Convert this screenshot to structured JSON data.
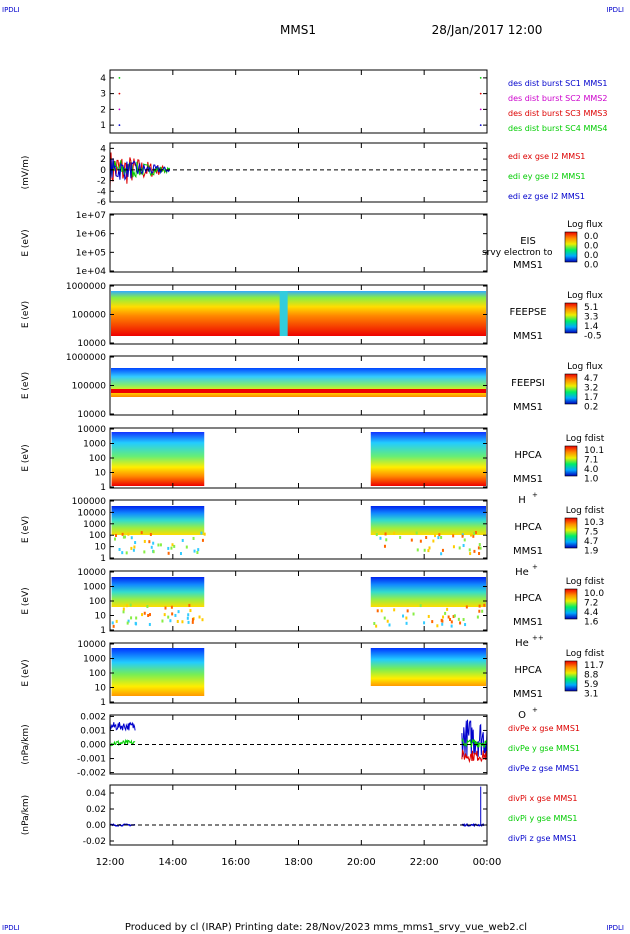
{
  "corner_tag": "IPDLI",
  "header": {
    "spacecraft": "MMS1",
    "datetime": "28/Jan/2017 12:00"
  },
  "footer": "Produced by cl (IRAP)   Printing date: 28/Nov/2023   mms_mms1_srvy_vue_web2.cl",
  "colors": {
    "black": "#000000",
    "blue": "#0000cc",
    "magenta": "#cc00cc",
    "red": "#dd0000",
    "green": "#00cc00",
    "darkblue": "#000099"
  },
  "chart_data": {
    "type": "multi-panel",
    "x_ticks": [
      "12:00",
      "14:00",
      "16:00",
      "18:00",
      "20:00",
      "22:00",
      "00:00"
    ],
    "x_range_hours": [
      12,
      24
    ],
    "panels": [
      {
        "id": "burst",
        "type": "scatter",
        "ylim": [
          0.5,
          4.5
        ],
        "yticks": [
          "1",
          "2",
          "3",
          "4"
        ],
        "ytick_values": [
          1,
          2,
          3,
          4
        ],
        "points": [
          {
            "t": 12.3,
            "v": 1
          },
          {
            "t": 12.3,
            "v": 2
          },
          {
            "t": 12.3,
            "v": 3
          },
          {
            "t": 12.3,
            "v": 4
          },
          {
            "t": 23.8,
            "v": 1
          },
          {
            "t": 23.8,
            "v": 2
          },
          {
            "t": 23.8,
            "v": 3
          },
          {
            "t": 23.8,
            "v": 4
          }
        ],
        "legend": [
          {
            "text": "des dist burst SC1 MMS1",
            "color": "#0000cc"
          },
          {
            "text": "des dist burst SC2 MMS2",
            "color": "#cc00cc"
          },
          {
            "text": "des dist burst SC3 MMS3",
            "color": "#dd0000"
          },
          {
            "text": "des dist burst SC4 MMS4",
            "color": "#00cc00"
          }
        ]
      },
      {
        "id": "edi",
        "type": "line",
        "ylabel": "(mV/m)",
        "ylim": [
          -6,
          5
        ],
        "yticks": [
          "4",
          "2",
          "0",
          "-2",
          "-4",
          "-6"
        ],
        "ytick_values": [
          4,
          2,
          0,
          -2,
          -4,
          -6
        ],
        "data_extent_hours": [
          12.0,
          13.9
        ],
        "legend": [
          {
            "text": "edi ex gse l2 MMS1",
            "color": "#dd0000"
          },
          {
            "text": "edi ey gse l2 MMS1",
            "color": "#00cc00"
          },
          {
            "text": "edi ez gse l2 MMS1",
            "color": "#0000cc"
          }
        ]
      },
      {
        "id": "eis",
        "type": "heatmap",
        "ylabel": "E (eV)",
        "yticks": [
          "1e+07",
          "1e+06",
          "1e+05",
          "1e+04"
        ],
        "instrument": [
          "EIS",
          "MMS1"
        ],
        "overlay_text": "srvy electron to",
        "colorbar": {
          "title": "Log flux",
          "values": [
            "0.0",
            "0.0",
            "0.0",
            "0.0"
          ]
        }
      },
      {
        "id": "feepse",
        "type": "heatmap",
        "ylabel": "E (eV)",
        "yticks": [
          "1000000",
          "100000",
          "10000"
        ],
        "instrument": [
          "FEEPSE",
          "MMS1"
        ],
        "colorbar": {
          "title": "Log flux",
          "values": [
            "5.1",
            "3.3",
            "1.4",
            "-0.5"
          ]
        }
      },
      {
        "id": "feepsi",
        "type": "heatmap",
        "ylabel": "E (eV)",
        "yticks": [
          "1000000",
          "100000",
          "10000"
        ],
        "instrument": [
          "FEEPSI",
          "MMS1"
        ],
        "colorbar": {
          "title": "Log flux",
          "values": [
            "4.7",
            "3.2",
            "1.7",
            "0.2"
          ]
        }
      },
      {
        "id": "hpca_h",
        "type": "heatmap",
        "ylabel": "E (eV)",
        "yticks": [
          "10000",
          "1000",
          "100",
          "10",
          "1"
        ],
        "instrument": [
          "HPCA",
          "MMS1"
        ],
        "species": "H",
        "charge": "+",
        "colorbar": {
          "title": "Log fdist",
          "values": [
            "10.1",
            "7.1",
            "4.0",
            "1.0"
          ]
        }
      },
      {
        "id": "hpca_he",
        "type": "heatmap",
        "ylabel": "E (eV)",
        "yticks": [
          "100000",
          "10000",
          "1000",
          "100",
          "10",
          "1"
        ],
        "instrument": [
          "HPCA",
          "MMS1"
        ],
        "species": "He",
        "charge": "+",
        "colorbar": {
          "title": "Log fdist",
          "values": [
            "10.3",
            "7.5",
            "4.7",
            "1.9"
          ]
        }
      },
      {
        "id": "hpca_hepp",
        "type": "heatmap",
        "ylabel": "E (eV)",
        "yticks": [
          "10000",
          "1000",
          "100",
          "10",
          "1"
        ],
        "instrument": [
          "HPCA",
          "MMS1"
        ],
        "species": "He",
        "charge": "++",
        "colorbar": {
          "title": "Log fdist",
          "values": [
            "10.0",
            "7.2",
            "4.4",
            "1.6"
          ]
        }
      },
      {
        "id": "hpca_o",
        "type": "heatmap",
        "ylabel": "E (eV)",
        "yticks": [
          "10000",
          "1000",
          "100",
          "10",
          "1"
        ],
        "instrument": [
          "HPCA",
          "MMS1"
        ],
        "species": "O",
        "charge": "+",
        "colorbar": {
          "title": "Log fdist",
          "values": [
            "11.7",
            "8.8",
            "5.9",
            "3.1"
          ]
        }
      },
      {
        "id": "divpe",
        "type": "line",
        "ylabel": "(nPa/km)",
        "ylim": [
          -0.0021,
          0.0021
        ],
        "yticks": [
          "0.002",
          "0.001",
          "0.000",
          "-0.001",
          "-0.002"
        ],
        "ytick_values": [
          0.002,
          0.001,
          0,
          -0.001,
          -0.002
        ],
        "legend": [
          {
            "text": "divPe x gse MMS1",
            "color": "#dd0000"
          },
          {
            "text": "divPe y gse MMS1",
            "color": "#00cc00"
          },
          {
            "text": "divPe z gse MMS1",
            "color": "#0000cc"
          }
        ]
      },
      {
        "id": "divpi",
        "type": "line",
        "ylabel": "(nPa/km)",
        "ylim": [
          -0.025,
          0.05
        ],
        "yticks": [
          "0.04",
          "0.02",
          "0.00",
          "-0.02"
        ],
        "ytick_values": [
          0.04,
          0.02,
          0,
          -0.02
        ],
        "legend": [
          {
            "text": "divPi x gse MMS1",
            "color": "#dd0000"
          },
          {
            "text": "divPi y gse MMS1",
            "color": "#00cc00"
          },
          {
            "text": "divPi z gse MMS1",
            "color": "#0000cc"
          }
        ]
      }
    ]
  }
}
